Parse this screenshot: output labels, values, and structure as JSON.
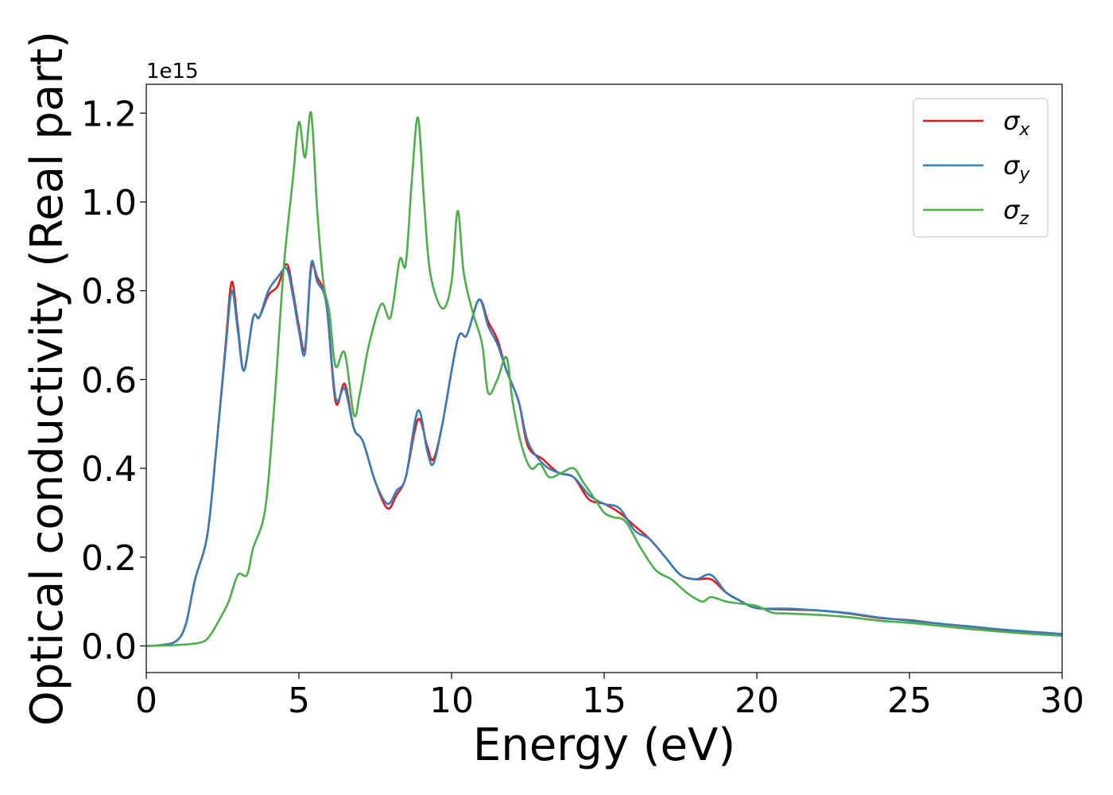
{
  "chart_data": {
    "type": "line",
    "xlabel": "Energy (eV)",
    "ylabel": "Optical conductivity (Real part)",
    "y_offset_text": "1e15",
    "xlim": [
      0,
      30
    ],
    "ylim": [
      -0.06,
      1.265
    ],
    "x_ticks": [
      0,
      5,
      10,
      15,
      20,
      25,
      30
    ],
    "x_tick_labels": [
      "0",
      "5",
      "10",
      "15",
      "20",
      "25",
      "30"
    ],
    "y_ticks": [
      0.0,
      0.2,
      0.4,
      0.6,
      0.8,
      1.0,
      1.2
    ],
    "y_tick_labels": [
      "0.0",
      "0.2",
      "0.4",
      "0.6",
      "0.8",
      "1.0",
      "1.2"
    ],
    "grid": false,
    "legend_position": "top-right",
    "series": [
      {
        "name": "σ",
        "subscript": "x",
        "color": "#e41a1c",
        "points": [
          [
            0,
            0
          ],
          [
            0.5,
            0.002
          ],
          [
            1.0,
            0.012
          ],
          [
            1.3,
            0.05
          ],
          [
            1.6,
            0.15
          ],
          [
            2.0,
            0.25
          ],
          [
            2.3,
            0.45
          ],
          [
            2.6,
            0.68
          ],
          [
            2.8,
            0.82
          ],
          [
            3.0,
            0.72
          ],
          [
            3.2,
            0.62
          ],
          [
            3.5,
            0.74
          ],
          [
            3.7,
            0.74
          ],
          [
            4.0,
            0.79
          ],
          [
            4.3,
            0.81
          ],
          [
            4.6,
            0.86
          ],
          [
            4.8,
            0.8
          ],
          [
            5.0,
            0.72
          ],
          [
            5.2,
            0.67
          ],
          [
            5.4,
            0.85
          ],
          [
            5.6,
            0.83
          ],
          [
            5.9,
            0.77
          ],
          [
            6.2,
            0.55
          ],
          [
            6.5,
            0.59
          ],
          [
            6.8,
            0.49
          ],
          [
            7.1,
            0.46
          ],
          [
            7.5,
            0.37
          ],
          [
            7.9,
            0.31
          ],
          [
            8.2,
            0.34
          ],
          [
            8.5,
            0.38
          ],
          [
            8.9,
            0.51
          ],
          [
            9.2,
            0.45
          ],
          [
            9.4,
            0.42
          ],
          [
            9.7,
            0.5
          ],
          [
            10.2,
            0.69
          ],
          [
            10.5,
            0.7
          ],
          [
            10.9,
            0.78
          ],
          [
            11.2,
            0.73
          ],
          [
            11.5,
            0.69
          ],
          [
            11.8,
            0.62
          ],
          [
            12.2,
            0.55
          ],
          [
            12.5,
            0.45
          ],
          [
            13.0,
            0.42
          ],
          [
            13.5,
            0.39
          ],
          [
            14.0,
            0.38
          ],
          [
            14.5,
            0.33
          ],
          [
            15.0,
            0.32
          ],
          [
            15.5,
            0.3
          ],
          [
            16.0,
            0.27
          ],
          [
            16.5,
            0.24
          ],
          [
            17.0,
            0.2
          ],
          [
            17.5,
            0.16
          ],
          [
            18.0,
            0.15
          ],
          [
            18.5,
            0.15
          ],
          [
            19.0,
            0.12
          ],
          [
            19.5,
            0.1
          ],
          [
            20.0,
            0.085
          ],
          [
            21.0,
            0.082
          ],
          [
            22.0,
            0.08
          ],
          [
            23.0,
            0.073
          ],
          [
            24.0,
            0.063
          ],
          [
            25.0,
            0.058
          ],
          [
            26.0,
            0.05
          ],
          [
            27.0,
            0.043
          ],
          [
            28.0,
            0.036
          ],
          [
            29.0,
            0.031
          ],
          [
            30.0,
            0.026
          ]
        ]
      },
      {
        "name": "σ",
        "subscript": "y",
        "color": "#377eb8",
        "points": [
          [
            0,
            0
          ],
          [
            0.5,
            0.002
          ],
          [
            1.0,
            0.012
          ],
          [
            1.3,
            0.05
          ],
          [
            1.6,
            0.15
          ],
          [
            2.0,
            0.25
          ],
          [
            2.3,
            0.45
          ],
          [
            2.6,
            0.67
          ],
          [
            2.8,
            0.8
          ],
          [
            3.0,
            0.71
          ],
          [
            3.2,
            0.62
          ],
          [
            3.5,
            0.74
          ],
          [
            3.7,
            0.74
          ],
          [
            4.0,
            0.8
          ],
          [
            4.3,
            0.83
          ],
          [
            4.6,
            0.85
          ],
          [
            4.8,
            0.79
          ],
          [
            5.0,
            0.71
          ],
          [
            5.2,
            0.66
          ],
          [
            5.4,
            0.86
          ],
          [
            5.6,
            0.82
          ],
          [
            5.9,
            0.77
          ],
          [
            6.2,
            0.56
          ],
          [
            6.5,
            0.58
          ],
          [
            6.8,
            0.49
          ],
          [
            7.1,
            0.46
          ],
          [
            7.5,
            0.37
          ],
          [
            7.9,
            0.32
          ],
          [
            8.2,
            0.35
          ],
          [
            8.5,
            0.38
          ],
          [
            8.9,
            0.53
          ],
          [
            9.2,
            0.44
          ],
          [
            9.4,
            0.41
          ],
          [
            9.7,
            0.5
          ],
          [
            10.2,
            0.69
          ],
          [
            10.5,
            0.7
          ],
          [
            10.9,
            0.78
          ],
          [
            11.2,
            0.72
          ],
          [
            11.5,
            0.68
          ],
          [
            11.8,
            0.62
          ],
          [
            12.2,
            0.55
          ],
          [
            12.5,
            0.46
          ],
          [
            13.0,
            0.41
          ],
          [
            13.5,
            0.39
          ],
          [
            14.0,
            0.38
          ],
          [
            14.5,
            0.34
          ],
          [
            15.0,
            0.32
          ],
          [
            15.5,
            0.31
          ],
          [
            16.0,
            0.26
          ],
          [
            16.5,
            0.24
          ],
          [
            17.0,
            0.2
          ],
          [
            17.5,
            0.16
          ],
          [
            18.0,
            0.15
          ],
          [
            18.5,
            0.16
          ],
          [
            19.0,
            0.12
          ],
          [
            19.5,
            0.1
          ],
          [
            20.0,
            0.085
          ],
          [
            21.0,
            0.084
          ],
          [
            22.0,
            0.08
          ],
          [
            23.0,
            0.074
          ],
          [
            24.0,
            0.064
          ],
          [
            25.0,
            0.057
          ],
          [
            26.0,
            0.05
          ],
          [
            27.0,
            0.044
          ],
          [
            28.0,
            0.037
          ],
          [
            29.0,
            0.032
          ],
          [
            30.0,
            0.027
          ]
        ]
      },
      {
        "name": "σ",
        "subscript": "z",
        "color": "#4daf4a",
        "points": [
          [
            0,
            0
          ],
          [
            1.0,
            0.002
          ],
          [
            1.8,
            0.008
          ],
          [
            2.1,
            0.025
          ],
          [
            2.4,
            0.06
          ],
          [
            2.7,
            0.1
          ],
          [
            3.0,
            0.16
          ],
          [
            3.3,
            0.16
          ],
          [
            3.5,
            0.22
          ],
          [
            3.9,
            0.31
          ],
          [
            4.2,
            0.55
          ],
          [
            4.5,
            0.85
          ],
          [
            4.8,
            1.05
          ],
          [
            5.0,
            1.18
          ],
          [
            5.2,
            1.1
          ],
          [
            5.4,
            1.2
          ],
          [
            5.6,
            0.98
          ],
          [
            5.8,
            0.82
          ],
          [
            6.0,
            0.75
          ],
          [
            6.2,
            0.63
          ],
          [
            6.5,
            0.66
          ],
          [
            6.8,
            0.52
          ],
          [
            7.0,
            0.57
          ],
          [
            7.3,
            0.68
          ],
          [
            7.7,
            0.77
          ],
          [
            8.0,
            0.74
          ],
          [
            8.3,
            0.87
          ],
          [
            8.5,
            0.86
          ],
          [
            8.7,
            1.05
          ],
          [
            8.9,
            1.19
          ],
          [
            9.1,
            1.0
          ],
          [
            9.3,
            0.84
          ],
          [
            9.7,
            0.76
          ],
          [
            10.0,
            0.82
          ],
          [
            10.2,
            0.98
          ],
          [
            10.4,
            0.84
          ],
          [
            10.7,
            0.75
          ],
          [
            11.0,
            0.68
          ],
          [
            11.2,
            0.57
          ],
          [
            11.5,
            0.6
          ],
          [
            11.8,
            0.65
          ],
          [
            12.0,
            0.55
          ],
          [
            12.3,
            0.45
          ],
          [
            12.6,
            0.4
          ],
          [
            12.9,
            0.41
          ],
          [
            13.2,
            0.38
          ],
          [
            13.6,
            0.39
          ],
          [
            14.0,
            0.4
          ],
          [
            14.3,
            0.37
          ],
          [
            14.7,
            0.33
          ],
          [
            15.0,
            0.3
          ],
          [
            15.3,
            0.29
          ],
          [
            15.7,
            0.28
          ],
          [
            16.2,
            0.22
          ],
          [
            16.7,
            0.17
          ],
          [
            17.2,
            0.15
          ],
          [
            17.7,
            0.12
          ],
          [
            18.2,
            0.1
          ],
          [
            18.5,
            0.11
          ],
          [
            19.0,
            0.1
          ],
          [
            19.5,
            0.095
          ],
          [
            20.0,
            0.09
          ],
          [
            20.5,
            0.075
          ],
          [
            21.0,
            0.073
          ],
          [
            22.0,
            0.07
          ],
          [
            23.0,
            0.065
          ],
          [
            24.0,
            0.057
          ],
          [
            25.0,
            0.052
          ],
          [
            26.0,
            0.045
          ],
          [
            27.0,
            0.038
          ],
          [
            28.0,
            0.032
          ],
          [
            29.0,
            0.027
          ],
          [
            30.0,
            0.023
          ]
        ]
      }
    ]
  }
}
